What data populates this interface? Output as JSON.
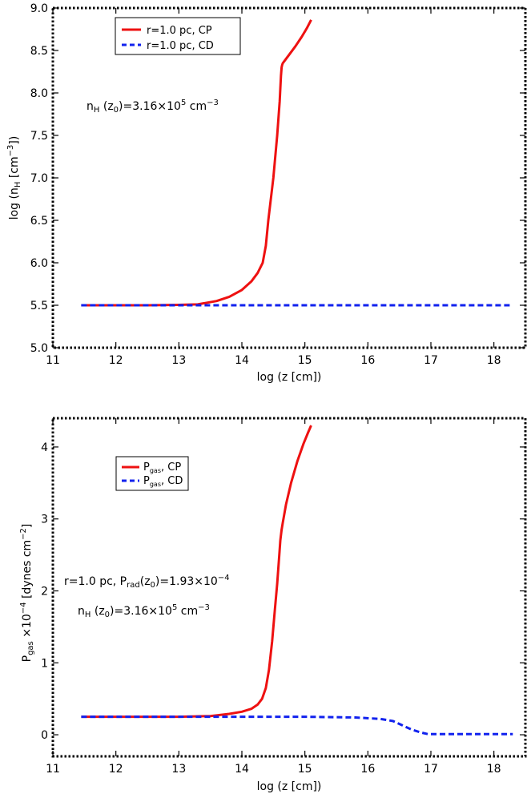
{
  "chart_data": [
    {
      "type": "line",
      "xlabel": "log (z [cm])",
      "ylabel": "log (n",
      "ylabel_sub": "H",
      "ylabel_end": " [cm",
      "ylabel_sup": "−3",
      "ylabel_close": "])",
      "xlim": [
        11,
        18.5
      ],
      "ylim": [
        5.0,
        9.0
      ],
      "xticks": [
        11,
        12,
        13,
        14,
        15,
        16,
        17,
        18
      ],
      "yticks": [
        5.0,
        5.5,
        6.0,
        6.5,
        7.0,
        7.5,
        8.0,
        8.5,
        9.0
      ],
      "ytick_labels": [
        "5.0",
        "5.5",
        "6.0",
        "6.5",
        "7.0",
        "7.5",
        "8.0",
        "8.5",
        "9.0"
      ],
      "legend_position": "top-left",
      "annotation": {
        "main": "n",
        "sub": "H",
        "mid": " (z",
        "sub2": "0",
        "rest": ")=3.16×10",
        "sup": "5",
        "unit": " cm",
        "unit_sup": "−3"
      },
      "series": [
        {
          "name": "r=1.0 pc, CP",
          "color": "#ee1111",
          "dash": "solid",
          "x": [
            11.45,
            12.0,
            12.5,
            13.0,
            13.3,
            13.6,
            13.8,
            14.0,
            14.15,
            14.25,
            14.33,
            14.38,
            14.42,
            14.5,
            14.56,
            14.6,
            14.62,
            14.63,
            14.64,
            14.65,
            14.68,
            14.75,
            14.85,
            14.95,
            15.03,
            15.1
          ],
          "y": [
            5.5,
            5.5,
            5.5,
            5.505,
            5.51,
            5.55,
            5.6,
            5.68,
            5.78,
            5.88,
            6.0,
            6.2,
            6.5,
            7.0,
            7.5,
            7.9,
            8.2,
            8.3,
            8.33,
            8.35,
            8.38,
            8.45,
            8.55,
            8.66,
            8.76,
            8.86
          ]
        },
        {
          "name": "r=1.0 pc, CD",
          "color": "#1122ee",
          "dash": "dashed",
          "x": [
            11.45,
            13.0,
            14.0,
            15.0,
            16.0,
            17.0,
            18.3
          ],
          "y": [
            5.5,
            5.5,
            5.5,
            5.5,
            5.5,
            5.5,
            5.5
          ]
        }
      ]
    },
    {
      "type": "line",
      "xlabel": "log (z [cm])",
      "ylabel": "P",
      "ylabel_sub": "gas",
      "ylabel_end": " ×10",
      "ylabel_sup": "−4",
      "ylabel_close": " [dynes cm",
      "ylabel_sup2": "−2",
      "ylabel_tail": "]",
      "xlim": [
        11,
        18.5
      ],
      "ylim": [
        -0.3,
        4.4
      ],
      "xticks": [
        11,
        12,
        13,
        14,
        15,
        16,
        17,
        18
      ],
      "yticks": [
        0,
        1,
        2,
        3,
        4
      ],
      "ytick_labels": [
        "0",
        "1",
        "2",
        "3",
        "4"
      ],
      "legend_position": "top-left",
      "legend_labels": [
        {
          "main": "P",
          "sub": "gas",
          "rest": ", CP"
        },
        {
          "main": "P",
          "sub": "gas",
          "rest": ", CD"
        }
      ],
      "annotation1": {
        "main": "r=1.0 pc, P",
        "sub": "rad",
        "mid": "(z",
        "sub2": "0",
        "rest": ")=1.93×10",
        "sup": "−4"
      },
      "annotation2": {
        "main": "n",
        "sub": "H",
        "mid": " (z",
        "sub2": "0",
        "rest": ")=3.16×10",
        "sup": "5",
        "unit": " cm",
        "unit_sup": "−3"
      },
      "series": [
        {
          "name": "P gas, CP",
          "color": "#ee1111",
          "dash": "solid",
          "x": [
            11.45,
            12.0,
            12.5,
            13.0,
            13.5,
            13.8,
            14.0,
            14.15,
            14.25,
            14.32,
            14.38,
            14.43,
            14.48,
            14.52,
            14.56,
            14.59,
            14.61,
            14.63,
            14.65,
            14.7,
            14.78,
            14.88,
            14.98,
            15.05,
            15.1
          ],
          "y": [
            0.25,
            0.25,
            0.25,
            0.25,
            0.26,
            0.29,
            0.32,
            0.36,
            0.42,
            0.5,
            0.65,
            0.9,
            1.3,
            1.7,
            2.1,
            2.45,
            2.7,
            2.85,
            2.95,
            3.2,
            3.5,
            3.8,
            4.05,
            4.2,
            4.3
          ]
        },
        {
          "name": "P gas, CD",
          "color": "#1122ee",
          "dash": "dashed",
          "x": [
            11.45,
            12.0,
            13.0,
            14.0,
            15.0,
            15.8,
            16.2,
            16.4,
            16.55,
            16.7,
            16.85,
            16.95,
            17.2,
            18.3
          ],
          "y": [
            0.25,
            0.25,
            0.25,
            0.25,
            0.25,
            0.24,
            0.22,
            0.19,
            0.13,
            0.07,
            0.03,
            0.01,
            0.01,
            0.01
          ]
        }
      ]
    }
  ]
}
